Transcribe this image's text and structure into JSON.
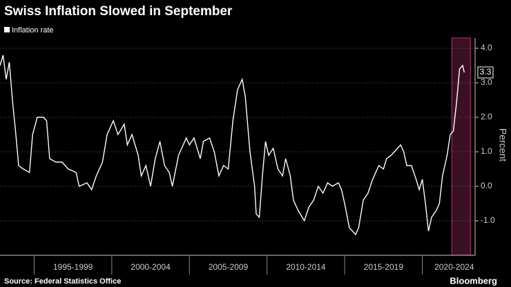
{
  "chart_data": {
    "type": "line",
    "title": "Swiss Inflation Slowed in September",
    "y_label": "Percent",
    "source": "Source: Federal Statistics Office",
    "brand": "Bloomberg",
    "grid": true,
    "legend": "top-left",
    "highlight": [
      2021.9,
      2023.1
    ],
    "xlim": [
      1992.8,
      2023.4
    ],
    "ylim": [
      -2,
      4.3
    ],
    "xticks": [
      {
        "value": 1995,
        "label": "1995-1999"
      },
      {
        "value": 2000,
        "label": "2000-2004"
      },
      {
        "value": 2005,
        "label": "2005-2009"
      },
      {
        "value": 2010,
        "label": "2010-2014"
      },
      {
        "value": 2015,
        "label": "2015-2019"
      },
      {
        "value": 2020,
        "label": "2020-2024"
      }
    ],
    "yticks": [
      {
        "value": 4,
        "label": "4.0"
      },
      {
        "value": 3,
        "label": "3.0"
      },
      {
        "value": 2,
        "label": "2.0"
      },
      {
        "value": 1,
        "label": "1.0"
      },
      {
        "value": 0,
        "label": "0.0"
      },
      {
        "value": -1,
        "label": "-1.0"
      }
    ],
    "x": [
      1992.8,
      1993.0,
      1993.2,
      1993.4,
      1993.6,
      1993.8,
      1994.0,
      1994.3,
      1994.7,
      1994.9,
      1995.2,
      1995.6,
      1995.8,
      1996.0,
      1996.4,
      1996.8,
      1997.2,
      1997.7,
      1997.9,
      1998.4,
      1998.7,
      1999.0,
      1999.4,
      1999.7,
      2000.1,
      2000.4,
      2000.8,
      2001.0,
      2001.3,
      2001.7,
      2001.9,
      2002.2,
      2002.5,
      2002.8,
      2003.1,
      2003.4,
      2003.7,
      2003.9,
      2004.3,
      2004.6,
      2004.8,
      2005.0,
      2005.3,
      2005.7,
      2005.9,
      2006.3,
      2006.6,
      2006.9,
      2007.2,
      2007.5,
      2007.8,
      2008.1,
      2008.4,
      2008.6,
      2008.9,
      2009.2,
      2009.3,
      2009.5,
      2009.7,
      2009.9,
      2010.1,
      2010.4,
      2010.7,
      2011.0,
      2011.2,
      2011.5,
      2011.7,
      2012.0,
      2012.4,
      2012.7,
      2013.0,
      2013.3,
      2013.6,
      2013.9,
      2014.2,
      2014.6,
      2014.8,
      2015.0,
      2015.3,
      2015.7,
      2015.9,
      2016.2,
      2016.5,
      2016.8,
      2017.2,
      2017.5,
      2017.7,
      2018.0,
      2018.4,
      2018.6,
      2018.8,
      2019.0,
      2019.3,
      2019.6,
      2019.8,
      2020.0,
      2020.2,
      2020.4,
      2020.6,
      2020.9,
      2021.1,
      2021.3,
      2021.5,
      2021.6,
      2021.8,
      2022.0,
      2022.2,
      2022.3,
      2022.4,
      2022.6,
      2022.7
    ],
    "series": [
      {
        "name": "Inflation rate",
        "color": "#ffffff",
        "values": [
          3.5,
          3.8,
          3.1,
          3.6,
          2.5,
          1.6,
          0.6,
          0.5,
          0.4,
          1.5,
          2.0,
          2.0,
          1.9,
          0.8,
          0.7,
          0.7,
          0.5,
          0.4,
          0.0,
          0.1,
          -0.1,
          0.3,
          0.7,
          1.5,
          1.9,
          1.5,
          1.8,
          1.2,
          1.5,
          0.9,
          0.3,
          0.6,
          0.0,
          0.8,
          1.3,
          0.6,
          0.4,
          0.0,
          0.9,
          1.2,
          1.4,
          1.2,
          1.4,
          0.8,
          1.3,
          1.4,
          1.0,
          0.3,
          0.6,
          0.5,
          1.9,
          2.8,
          3.1,
          2.6,
          1.0,
          0.0,
          -0.8,
          -0.9,
          0.3,
          1.3,
          0.9,
          1.1,
          0.5,
          0.3,
          0.8,
          0.3,
          -0.4,
          -0.7,
          -1.0,
          -0.6,
          -0.4,
          0.0,
          -0.2,
          0.1,
          0.0,
          0.1,
          -0.1,
          -0.5,
          -1.2,
          -1.4,
          -1.2,
          -0.4,
          -0.2,
          0.2,
          0.6,
          0.5,
          0.8,
          0.9,
          1.1,
          1.2,
          1.0,
          0.6,
          0.6,
          0.2,
          -0.1,
          0.2,
          -0.5,
          -1.3,
          -0.9,
          -0.7,
          -0.5,
          0.3,
          0.7,
          0.9,
          1.5,
          1.6,
          2.4,
          2.9,
          3.4,
          3.5,
          3.3
        ]
      }
    ]
  }
}
